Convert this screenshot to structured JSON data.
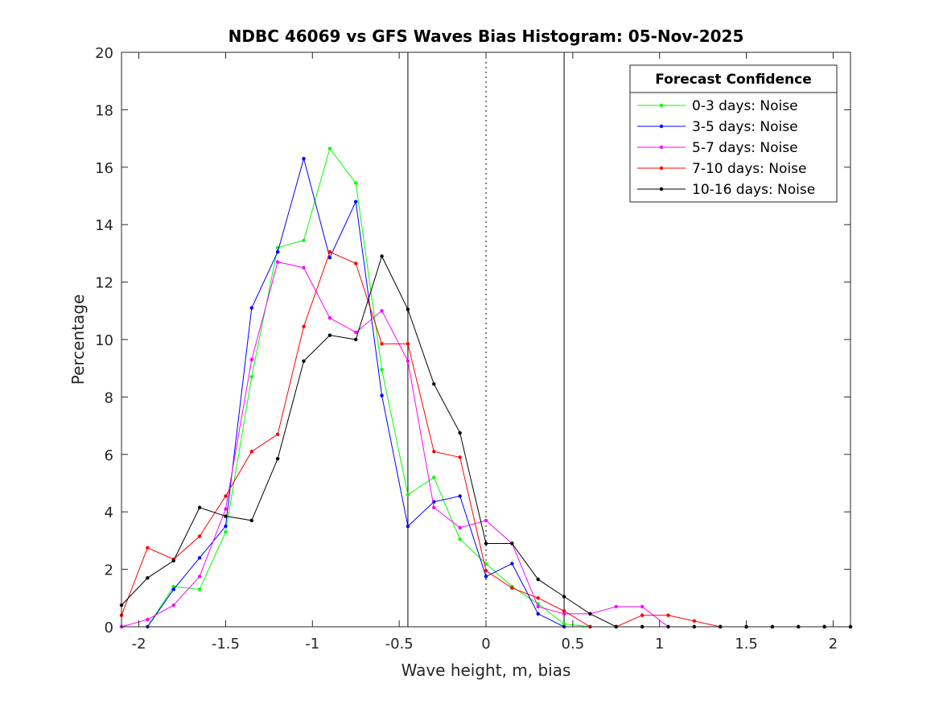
{
  "chart_data": {
    "type": "line",
    "title": "NDBC 46069 vs GFS Waves Bias Histogram: 05-Nov-2025",
    "xlabel": "Wave height, m, bias",
    "ylabel": "Percentage",
    "xlim": [
      -2.1,
      2.1
    ],
    "ylim": [
      0,
      20
    ],
    "xticks": [
      -2,
      -1.5,
      -1,
      -0.5,
      0,
      0.5,
      1,
      1.5,
      2
    ],
    "xtick_labels": [
      "-2",
      "-1.5",
      "-1",
      "-0.5",
      "0",
      "0.5",
      "1",
      "1.5",
      "2"
    ],
    "yticks": [
      0,
      2,
      4,
      6,
      8,
      10,
      12,
      14,
      16,
      18,
      20
    ],
    "ytick_labels": [
      "0",
      "2",
      "4",
      "6",
      "8",
      "10",
      "12",
      "14",
      "16",
      "18",
      "20"
    ],
    "grid": false,
    "reference_lines": [
      {
        "x": -0.45,
        "style": "solid"
      },
      {
        "x": 0,
        "style": "dotted"
      },
      {
        "x": 0.45,
        "style": "solid"
      }
    ],
    "x": [
      -2.1,
      -1.95,
      -1.8,
      -1.65,
      -1.5,
      -1.35,
      -1.2,
      -1.05,
      -0.9,
      -0.75,
      -0.6,
      -0.45,
      -0.3,
      -0.15,
      0,
      0.15,
      0.3,
      0.45,
      0.6,
      0.75,
      0.9,
      1.05,
      1.2,
      1.35,
      1.5,
      1.65,
      1.8,
      1.95,
      2.1
    ],
    "legend": {
      "title": "Forecast Confidence",
      "position": "top-right"
    },
    "series": [
      {
        "name": "0-3 days: Noise",
        "color": "#00ff00",
        "values": [
          0,
          0,
          1.4,
          1.3,
          3.3,
          8.7,
          13.2,
          13.45,
          16.65,
          15.45,
          8.95,
          4.6,
          5.2,
          3.05,
          2.2,
          1.4,
          0.8,
          0.1,
          0,
          0,
          0,
          0,
          0,
          0,
          0,
          0,
          0,
          0,
          0
        ]
      },
      {
        "name": "3-5 days: Noise",
        "color": "#0000ff",
        "values": [
          0,
          0,
          1.3,
          2.4,
          3.5,
          11.1,
          13.05,
          16.3,
          12.85,
          14.8,
          8.05,
          3.5,
          4.35,
          4.55,
          1.75,
          2.2,
          0.45,
          0,
          0,
          0,
          0,
          0,
          0,
          0,
          0,
          0,
          0,
          0,
          0
        ]
      },
      {
        "name": "5-7 days: Noise",
        "color": "#ff00ff",
        "values": [
          0,
          0.25,
          0.75,
          1.75,
          4.1,
          9.3,
          12.7,
          12.5,
          10.75,
          10.25,
          11,
          9.25,
          4.15,
          3.45,
          3.7,
          2.9,
          0.7,
          0.45,
          0.45,
          0.7,
          0.7,
          0,
          0,
          0,
          0,
          0,
          0,
          0,
          0
        ]
      },
      {
        "name": "7-10 days: Noise",
        "color": "#ff0000",
        "values": [
          0.4,
          2.75,
          2.35,
          3.15,
          4.55,
          6.1,
          6.7,
          10.45,
          13.05,
          12.65,
          9.85,
          9.85,
          6.1,
          5.9,
          1.95,
          1.35,
          1.0,
          0.55,
          0,
          0,
          0.4,
          0.4,
          0.2,
          0,
          0,
          0,
          0,
          0,
          0
        ]
      },
      {
        "name": "10-16 days: Noise",
        "color": "#000000",
        "values": [
          0.75,
          1.7,
          2.3,
          4.15,
          3.85,
          3.7,
          5.85,
          9.25,
          10.15,
          10.0,
          12.9,
          11.05,
          8.45,
          6.75,
          2.9,
          2.9,
          1.65,
          1.05,
          0.45,
          0,
          0,
          0,
          0,
          0,
          0,
          0,
          0,
          0,
          0
        ]
      }
    ]
  }
}
